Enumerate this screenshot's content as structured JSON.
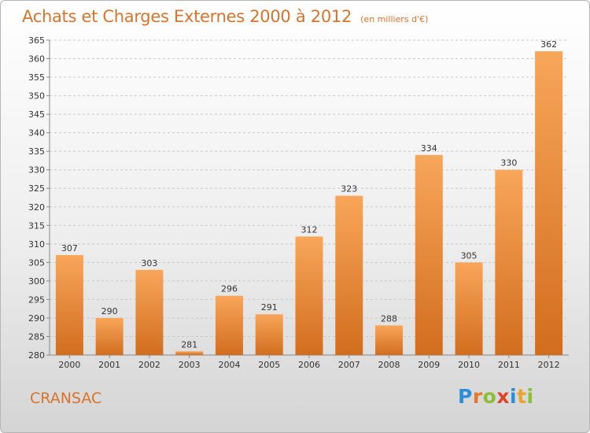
{
  "header": {
    "title": "Achats et Charges Externes 2000 à 2012",
    "subtitle": "(en milliers d'€)"
  },
  "footer": {
    "commune": "CRANSAC",
    "logo_text": "Proxiti",
    "logo_letters": [
      {
        "ch": "P",
        "color": "#2c8fd6"
      },
      {
        "ch": "r",
        "color": "#e8762d"
      },
      {
        "ch": "o",
        "color": "#8cbe35"
      },
      {
        "ch": "x",
        "color": "#d9452b"
      },
      {
        "ch": "i",
        "color": "#2c8fd6"
      },
      {
        "ch": "t",
        "color": "#e8a42d"
      },
      {
        "ch": "i",
        "color": "#8cbe35"
      }
    ]
  },
  "colors": {
    "accent": "#d9732b",
    "bar_top": "#f8a65a",
    "bar_bottom": "#d26d1e",
    "grid": "#c8c8c8",
    "text": "#333333"
  },
  "chart_data": {
    "type": "bar",
    "categories": [
      "2000",
      "2001",
      "2002",
      "2003",
      "2004",
      "2005",
      "2006",
      "2007",
      "2008",
      "2009",
      "2010",
      "2011",
      "2012"
    ],
    "values": [
      307,
      290,
      303,
      281,
      296,
      291,
      312,
      323,
      288,
      334,
      305,
      330,
      362
    ],
    "ylim": [
      280,
      365
    ],
    "yticks": [
      280,
      285,
      290,
      295,
      300,
      305,
      310,
      315,
      320,
      325,
      330,
      335,
      340,
      345,
      350,
      355,
      360,
      365
    ],
    "grid": true,
    "title": "Achats et Charges Externes 2000 à 2012",
    "subtitle": "(en milliers d'€)",
    "xlabel": "",
    "ylabel": ""
  }
}
